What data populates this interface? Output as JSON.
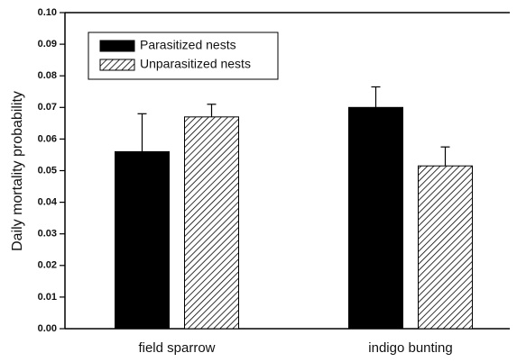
{
  "chart_data": {
    "type": "bar",
    "ylabel": "Daily mortality probability",
    "categories": [
      "field sparrow",
      "indigo bunting"
    ],
    "series": [
      {
        "name": "Parasitized nests",
        "color": "#000000",
        "hatch": false,
        "values": [
          0.056,
          0.07
        ],
        "errors": [
          0.012,
          0.0065
        ]
      },
      {
        "name": "Unparasitized nests",
        "color": "#000000",
        "hatch": true,
        "values": [
          0.067,
          0.0515
        ],
        "errors": [
          0.004,
          0.006
        ]
      }
    ],
    "ylim": [
      0,
      0.1
    ],
    "yticks": [
      {
        "value": 0,
        "label": "0.00"
      },
      {
        "value": 0.01,
        "label": "0.01"
      },
      {
        "value": 0.02,
        "label": "0.02"
      },
      {
        "value": 0.03,
        "label": "0.03"
      },
      {
        "value": 0.04,
        "label": "0.04"
      },
      {
        "value": 0.05,
        "label": "0.05"
      },
      {
        "value": 0.06,
        "label": "0.06"
      },
      {
        "value": 0.07,
        "label": "0.07"
      },
      {
        "value": 0.08,
        "label": "0.08"
      },
      {
        "value": 0.09,
        "label": "0.09"
      },
      {
        "value": 0.1,
        "label": "0.10"
      }
    ],
    "grid": false,
    "legend": "upper left"
  }
}
